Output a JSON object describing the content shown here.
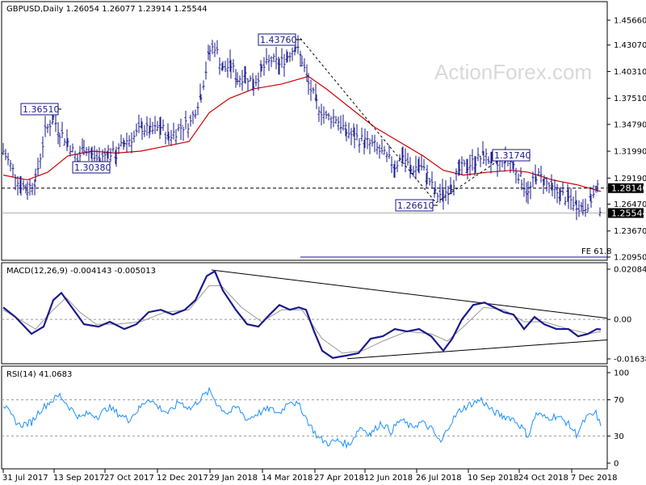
{
  "chart_data": [
    {
      "type": "ohlc",
      "panel": "price",
      "header": "GBPUSD,Daily  1.26054 1.26077 1.23914 1.25544",
      "watermark": "ActionForex.com",
      "y_ticks": [
        "1.45660",
        "1.43070",
        "1.40310",
        "1.37510",
        "1.34790",
        "1.31990",
        "1.29190",
        "1.26470",
        "1.23670",
        "1.20950"
      ],
      "y_values": [
        1.4566,
        1.4307,
        1.4031,
        1.3751,
        1.3479,
        1.3199,
        1.2919,
        1.2647,
        1.2367,
        1.2095
      ],
      "current_price_label": "1.25544",
      "current_price": 1.25544,
      "horizontal_level_label": "1.28140",
      "horizontal_level": 1.2814,
      "fe_label": "FE 61.8",
      "x_tick_labels": [
        "31 Jul 2017",
        "13 Sep 2017",
        "27 Oct 2017",
        "12 Dec 2017",
        "29 Jan 2018",
        "14 Mar 2018",
        "27 Apr 2018",
        "12 Jun 2018",
        "26 Jul 2018",
        "10 Sep 2018",
        "24 Oct 2018",
        "7 Dec 2018"
      ],
      "annotations": [
        {
          "text": "1.43760",
          "date": "2018-04-17",
          "value": 1.4376
        },
        {
          "text": "1.36510",
          "date": "2017-09-20",
          "value": 1.3651
        },
        {
          "text": "1.30380",
          "date": "2017-11-02",
          "value": 1.3038
        },
        {
          "text": "1.26610",
          "date": "2018-08-15",
          "value": 1.2661
        },
        {
          "text": "1.31740",
          "date": "2018-10-01",
          "value": 1.3174
        }
      ],
      "series": [
        {
          "name": "close",
          "color": "#1a1a8c",
          "points": [
            [
              0,
              1.32
            ],
            [
              12,
              1.3
            ],
            [
              22,
              1.285
            ],
            [
              30,
              1.28
            ],
            [
              40,
              1.29
            ],
            [
              52,
              1.34
            ],
            [
              62,
              1.355
            ],
            [
              70,
              1.34
            ],
            [
              80,
              1.33
            ],
            [
              92,
              1.31
            ],
            [
              100,
              1.325
            ],
            [
              110,
              1.315
            ],
            [
              120,
              1.31
            ],
            [
              130,
              1.32
            ],
            [
              140,
              1.315
            ],
            [
              150,
              1.33
            ],
            [
              162,
              1.335
            ],
            [
              172,
              1.345
            ],
            [
              182,
              1.34
            ],
            [
              195,
              1.345
            ],
            [
              205,
              1.335
            ],
            [
              220,
              1.345
            ],
            [
              232,
              1.35
            ],
            [
              245,
              1.38
            ],
            [
              256,
              1.425
            ],
            [
              262,
              1.43
            ],
            [
              272,
              1.405
            ],
            [
              282,
              1.41
            ],
            [
              290,
              1.395
            ],
            [
              300,
              1.4
            ],
            [
              310,
              1.39
            ],
            [
              320,
              1.405
            ],
            [
              332,
              1.415
            ],
            [
              342,
              1.41
            ],
            [
              352,
              1.42
            ],
            [
              362,
              1.43
            ],
            [
              370,
              1.415
            ],
            [
              378,
              1.39
            ],
            [
              388,
              1.37
            ],
            [
              400,
              1.355
            ],
            [
              412,
              1.355
            ],
            [
              425,
              1.34
            ],
            [
              435,
              1.335
            ],
            [
              448,
              1.33
            ],
            [
              460,
              1.325
            ],
            [
              472,
              1.315
            ],
            [
              485,
              1.305
            ],
            [
              495,
              1.315
            ],
            [
              505,
              1.3
            ],
            [
              515,
              1.305
            ],
            [
              525,
              1.295
            ],
            [
              535,
              1.275
            ],
            [
              545,
              1.275
            ],
            [
              555,
              1.285
            ],
            [
              565,
              1.3
            ],
            [
              575,
              1.305
            ],
            [
              585,
              1.31
            ],
            [
              595,
              1.315
            ],
            [
              605,
              1.31
            ],
            [
              612,
              1.305
            ],
            [
              622,
              1.315
            ],
            [
              632,
              1.305
            ],
            [
              642,
              1.29
            ],
            [
              650,
              1.275
            ],
            [
              660,
              1.295
            ],
            [
              670,
              1.29
            ],
            [
              680,
              1.28
            ],
            [
              690,
              1.275
            ],
            [
              700,
              1.27
            ],
            [
              710,
              1.265
            ],
            [
              718,
              1.26
            ],
            [
              728,
              1.27
            ],
            [
              736,
              1.28
            ],
            [
              740,
              1.25544
            ]
          ]
        },
        {
          "name": "ma",
          "color": "#cc0000",
          "points": [
            [
              0,
              1.295
            ],
            [
              30,
              1.29
            ],
            [
              55,
              1.298
            ],
            [
              80,
              1.315
            ],
            [
              110,
              1.32
            ],
            [
              140,
              1.318
            ],
            [
              170,
              1.32
            ],
            [
              200,
              1.325
            ],
            [
              230,
              1.33
            ],
            [
              255,
              1.36
            ],
            [
              280,
              1.375
            ],
            [
              310,
              1.385
            ],
            [
              345,
              1.39
            ],
            [
              378,
              1.398
            ],
            [
              400,
              1.385
            ],
            [
              430,
              1.365
            ],
            [
              460,
              1.345
            ],
            [
              490,
              1.33
            ],
            [
              520,
              1.315
            ],
            [
              545,
              1.3
            ],
            [
              570,
              1.295
            ],
            [
              600,
              1.298
            ],
            [
              630,
              1.3
            ],
            [
              650,
              1.298
            ],
            [
              680,
              1.29
            ],
            [
              710,
              1.285
            ],
            [
              740,
              1.278
            ]
          ]
        }
      ]
    },
    {
      "type": "line",
      "panel": "macd",
      "header": "MACD(12,26,9) -0.004143 -0.005013",
      "y_ticks": [
        "0.020848",
        "0.00",
        "-0.016389"
      ],
      "y_values": [
        0.020848,
        0.0,
        -0.016389
      ],
      "series": [
        {
          "name": "macd",
          "color": "#1a1a8c",
          "points": [
            [
              0,
              0.005
            ],
            [
              15,
              0.001
            ],
            [
              35,
              -0.006
            ],
            [
              50,
              -0.003
            ],
            [
              62,
              0.008
            ],
            [
              72,
              0.011
            ],
            [
              85,
              0.005
            ],
            [
              100,
              -0.002
            ],
            [
              118,
              -0.003
            ],
            [
              132,
              -0.001
            ],
            [
              150,
              -0.004
            ],
            [
              165,
              -0.002
            ],
            [
              180,
              0.003
            ],
            [
              195,
              0.004
            ],
            [
              210,
              0.002
            ],
            [
              225,
              0.004
            ],
            [
              238,
              0.008
            ],
            [
              252,
              0.018
            ],
            [
              262,
              0.02
            ],
            [
              272,
              0.012
            ],
            [
              288,
              0.004
            ],
            [
              302,
              -0.002
            ],
            [
              316,
              -0.003
            ],
            [
              330,
              0.002
            ],
            [
              342,
              0.006
            ],
            [
              355,
              0.004
            ],
            [
              366,
              0.005
            ],
            [
              375,
              0.004
            ],
            [
              385,
              -0.005
            ],
            [
              395,
              -0.013
            ],
            [
              408,
              -0.016
            ],
            [
              425,
              -0.015
            ],
            [
              440,
              -0.014
            ],
            [
              455,
              -0.008
            ],
            [
              470,
              -0.007
            ],
            [
              485,
              -0.004
            ],
            [
              500,
              -0.005
            ],
            [
              515,
              -0.004
            ],
            [
              530,
              -0.007
            ],
            [
              545,
              -0.013
            ],
            [
              556,
              -0.008
            ],
            [
              568,
              0.0
            ],
            [
              582,
              0.006
            ],
            [
              596,
              0.007
            ],
            [
              608,
              0.005
            ],
            [
              620,
              0.003
            ],
            [
              632,
              0.002
            ],
            [
              645,
              -0.004
            ],
            [
              658,
              0.001
            ],
            [
              670,
              -0.002
            ],
            [
              685,
              -0.004
            ],
            [
              700,
              -0.004
            ],
            [
              712,
              -0.007
            ],
            [
              724,
              -0.006
            ],
            [
              735,
              -0.004
            ],
            [
              740,
              -0.004143
            ]
          ]
        },
        {
          "name": "signal",
          "color": "#999999",
          "points": [
            [
              0,
              0.004
            ],
            [
              20,
              0.0
            ],
            [
              40,
              -0.004
            ],
            [
              62,
              0.004
            ],
            [
              78,
              0.009
            ],
            [
              95,
              0.003
            ],
            [
              115,
              -0.002
            ],
            [
              140,
              -0.002
            ],
            [
              170,
              -0.001
            ],
            [
              200,
              0.003
            ],
            [
              230,
              0.004
            ],
            [
              255,
              0.014
            ],
            [
              270,
              0.014
            ],
            [
              295,
              0.005
            ],
            [
              320,
              -0.001
            ],
            [
              345,
              0.004
            ],
            [
              370,
              0.004
            ],
            [
              395,
              -0.008
            ],
            [
              420,
              -0.014
            ],
            [
              445,
              -0.013
            ],
            [
              470,
              -0.009
            ],
            [
              500,
              -0.005
            ],
            [
              530,
              -0.006
            ],
            [
              550,
              -0.009
            ],
            [
              570,
              -0.003
            ],
            [
              595,
              0.005
            ],
            [
              620,
              0.004
            ],
            [
              645,
              -0.001
            ],
            [
              670,
              -0.001
            ],
            [
              700,
              -0.004
            ],
            [
              725,
              -0.006
            ],
            [
              740,
              -0.005013
            ]
          ]
        }
      ]
    },
    {
      "type": "line",
      "panel": "rsi",
      "header": "RSI(14) 41.0683",
      "y_ticks": [
        "100",
        "70",
        "30",
        "0"
      ],
      "y_values": [
        100,
        70,
        30,
        0
      ],
      "series": [
        {
          "name": "rsi",
          "color": "#1e90ff",
          "points": [
            [
              0,
              65
            ],
            [
              10,
              52
            ],
            [
              20,
              42
            ],
            [
              35,
              45
            ],
            [
              45,
              58
            ],
            [
              58,
              68
            ],
            [
              70,
              75
            ],
            [
              82,
              62
            ],
            [
              95,
              50
            ],
            [
              105,
              55
            ],
            [
              118,
              52
            ],
            [
              130,
              62
            ],
            [
              142,
              55
            ],
            [
              155,
              48
            ],
            [
              168,
              60
            ],
            [
              180,
              72
            ],
            [
              192,
              62
            ],
            [
              205,
              55
            ],
            [
              218,
              68
            ],
            [
              232,
              60
            ],
            [
              245,
              72
            ],
            [
              256,
              80
            ],
            [
              265,
              65
            ],
            [
              278,
              55
            ],
            [
              290,
              62
            ],
            [
              302,
              48
            ],
            [
              315,
              55
            ],
            [
              330,
              60
            ],
            [
              342,
              55
            ],
            [
              355,
              70
            ],
            [
              368,
              62
            ],
            [
              378,
              45
            ],
            [
              390,
              28
            ],
            [
              402,
              22
            ],
            [
              415,
              25
            ],
            [
              428,
              20
            ],
            [
              442,
              40
            ],
            [
              455,
              32
            ],
            [
              468,
              45
            ],
            [
              480,
              35
            ],
            [
              492,
              48
            ],
            [
              505,
              40
            ],
            [
              518,
              45
            ],
            [
              530,
              38
            ],
            [
              542,
              22
            ],
            [
              552,
              42
            ],
            [
              565,
              58
            ],
            [
              578,
              65
            ],
            [
              592,
              70
            ],
            [
              605,
              58
            ],
            [
              618,
              52
            ],
            [
              630,
              50
            ],
            [
              642,
              40
            ],
            [
              650,
              30
            ],
            [
              660,
              55
            ],
            [
              672,
              50
            ],
            [
              685,
              52
            ],
            [
              698,
              45
            ],
            [
              710,
              32
            ],
            [
              722,
              50
            ],
            [
              734,
              55
            ],
            [
              740,
              41.0683
            ]
          ]
        }
      ]
    }
  ]
}
